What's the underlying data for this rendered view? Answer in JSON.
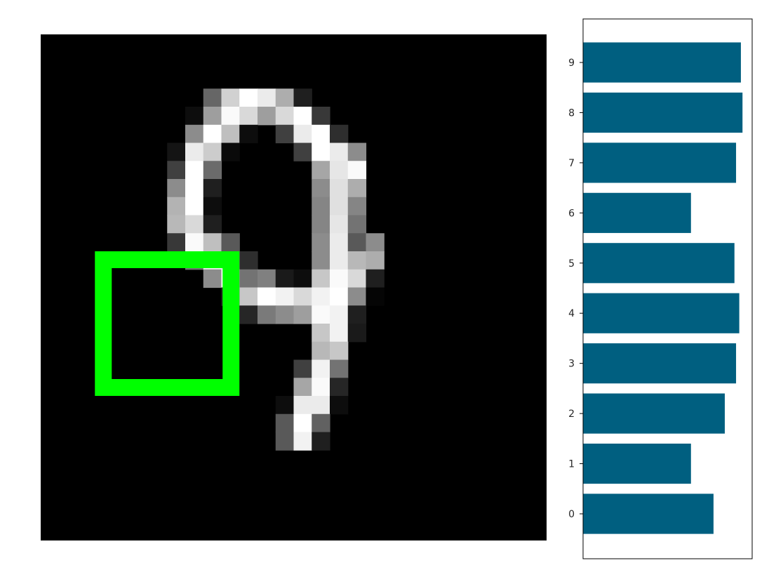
{
  "chart_data": [
    {
      "type": "heatmap",
      "rows": 28,
      "cols": 28,
      "colormap": "gray",
      "pixels": [
        [
          3,
          8,
          0
        ],
        [
          3,
          9,
          0.4
        ],
        [
          3,
          10,
          0.82
        ],
        [
          3,
          11,
          1
        ],
        [
          3,
          12,
          0.92
        ],
        [
          3,
          13,
          0.68
        ],
        [
          3,
          14,
          0.12
        ],
        [
          4,
          8,
          0.05
        ],
        [
          4,
          9,
          0.62
        ],
        [
          4,
          10,
          0.98
        ],
        [
          4,
          11,
          0.85
        ],
        [
          4,
          12,
          0.62
        ],
        [
          4,
          13,
          0.85
        ],
        [
          4,
          14,
          1
        ],
        [
          4,
          15,
          0.22
        ],
        [
          5,
          8,
          0.55
        ],
        [
          5,
          9,
          1
        ],
        [
          5,
          10,
          0.75
        ],
        [
          5,
          11,
          0.05
        ],
        [
          5,
          13,
          0.25
        ],
        [
          5,
          14,
          0.92
        ],
        [
          5,
          15,
          1
        ],
        [
          5,
          16,
          0.18
        ],
        [
          6,
          7,
          0.08
        ],
        [
          6,
          8,
          0.92
        ],
        [
          6,
          9,
          0.8
        ],
        [
          6,
          10,
          0.04
        ],
        [
          6,
          14,
          0.25
        ],
        [
          6,
          15,
          1
        ],
        [
          6,
          16,
          0.92
        ],
        [
          6,
          17,
          0.55
        ],
        [
          7,
          7,
          0.25
        ],
        [
          7,
          8,
          1
        ],
        [
          7,
          9,
          0.42
        ],
        [
          7,
          15,
          0.65
        ],
        [
          7,
          16,
          0.9
        ],
        [
          7,
          17,
          0.98
        ],
        [
          8,
          7,
          0.55
        ],
        [
          8,
          8,
          1
        ],
        [
          8,
          9,
          0.12
        ],
        [
          8,
          15,
          0.55
        ],
        [
          8,
          16,
          0.88
        ],
        [
          8,
          17,
          0.68
        ],
        [
          9,
          7,
          0.7
        ],
        [
          9,
          8,
          1
        ],
        [
          9,
          9,
          0.05
        ],
        [
          9,
          15,
          0.52
        ],
        [
          9,
          16,
          0.88
        ],
        [
          9,
          17,
          0.52
        ],
        [
          10,
          7,
          0.72
        ],
        [
          10,
          8,
          0.85
        ],
        [
          10,
          9,
          0.12
        ],
        [
          10,
          15,
          0.52
        ],
        [
          10,
          16,
          0.9
        ],
        [
          10,
          17,
          0.45
        ],
        [
          11,
          7,
          0.22
        ],
        [
          11,
          8,
          0.98
        ],
        [
          11,
          9,
          0.75
        ],
        [
          11,
          10,
          0.35
        ],
        [
          11,
          15,
          0.55
        ],
        [
          11,
          16,
          0.92
        ],
        [
          11,
          17,
          0.35
        ],
        [
          11,
          18,
          0.55
        ],
        [
          12,
          8,
          0.45
        ],
        [
          12,
          9,
          0.95
        ],
        [
          12,
          10,
          0.92
        ],
        [
          12,
          11,
          0.18
        ],
        [
          12,
          15,
          0.55
        ],
        [
          12,
          16,
          0.92
        ],
        [
          12,
          17,
          0.72
        ],
        [
          12,
          18,
          0.68
        ],
        [
          13,
          9,
          0.55
        ],
        [
          13,
          10,
          1
        ],
        [
          13,
          11,
          0.45
        ],
        [
          13,
          12,
          0.5
        ],
        [
          13,
          13,
          0.1
        ],
        [
          13,
          14,
          0.05
        ],
        [
          13,
          15,
          0.78
        ],
        [
          13,
          16,
          0.98
        ],
        [
          13,
          17,
          0.85
        ],
        [
          13,
          18,
          0.12
        ],
        [
          14,
          10,
          0.15
        ],
        [
          14,
          11,
          0.78
        ],
        [
          14,
          12,
          1
        ],
        [
          14,
          13,
          0.95
        ],
        [
          14,
          14,
          0.85
        ],
        [
          14,
          15,
          0.95
        ],
        [
          14,
          16,
          1
        ],
        [
          14,
          17,
          0.55
        ],
        [
          14,
          18,
          0.02
        ],
        [
          15,
          11,
          0.15
        ],
        [
          15,
          12,
          0.48
        ],
        [
          15,
          13,
          0.55
        ],
        [
          15,
          14,
          0.62
        ],
        [
          15,
          15,
          0.98
        ],
        [
          15,
          16,
          0.95
        ],
        [
          15,
          17,
          0.12
        ],
        [
          16,
          15,
          0.78
        ],
        [
          16,
          16,
          0.95
        ],
        [
          16,
          17,
          0.1
        ],
        [
          17,
          15,
          0.72
        ],
        [
          17,
          16,
          0.78
        ],
        [
          18,
          14,
          0.25
        ],
        [
          18,
          15,
          0.95
        ],
        [
          18,
          16,
          0.45
        ],
        [
          19,
          14,
          0.65
        ],
        [
          19,
          15,
          0.98
        ],
        [
          19,
          16,
          0.15
        ],
        [
          20,
          13,
          0.05
        ],
        [
          20,
          14,
          0.92
        ],
        [
          20,
          15,
          0.92
        ],
        [
          20,
          16,
          0.05
        ],
        [
          21,
          13,
          0.35
        ],
        [
          21,
          14,
          1
        ],
        [
          21,
          15,
          0.38
        ],
        [
          22,
          13,
          0.35
        ],
        [
          22,
          14,
          0.95
        ],
        [
          22,
          15,
          0.12
        ]
      ],
      "highlight_box": {
        "row": 12,
        "col": 3,
        "rows": 8,
        "cols": 8,
        "color": "#00ff00"
      }
    },
    {
      "type": "bar",
      "orientation": "horizontal",
      "categories": [
        "0",
        "1",
        "2",
        "3",
        "4",
        "5",
        "6",
        "7",
        "8",
        "9"
      ],
      "values": [
        0.81,
        0.67,
        0.88,
        0.95,
        0.97,
        0.94,
        0.67,
        0.95,
        0.99,
        0.98
      ],
      "xlim": [
        0,
        1.05
      ],
      "bar_color": "#005f80",
      "frame_color": "#000000"
    }
  ]
}
